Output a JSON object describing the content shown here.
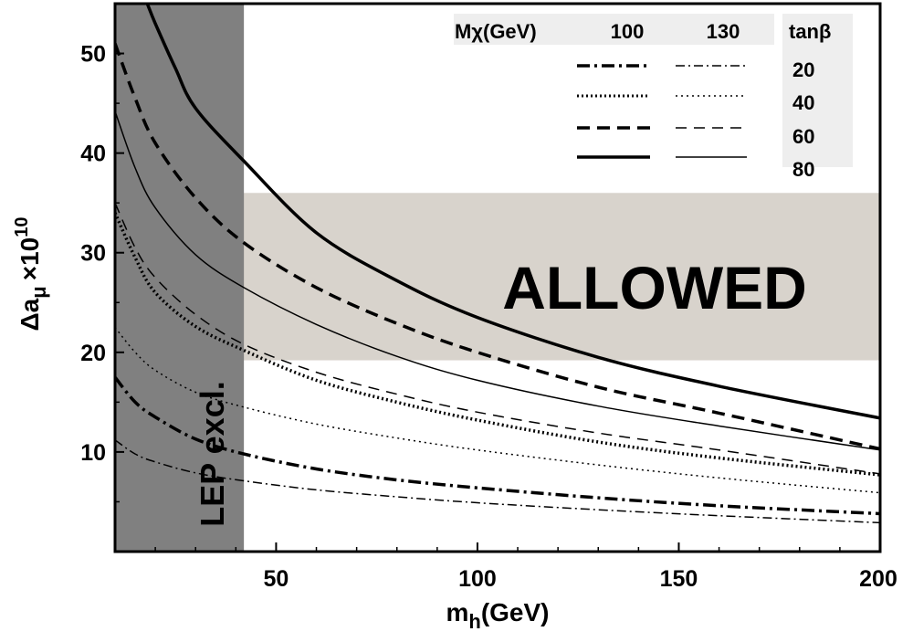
{
  "chart_data": {
    "type": "line",
    "xlabel": "m",
    "xlabel_sub": "h",
    "xlabel_unit": "(GeV)",
    "ylabel": "Δa",
    "ylabel_sub": "μ",
    "ylabel_times": "×10",
    "ylabel_exp": "10",
    "xlim": [
      10,
      200
    ],
    "ylim": [
      0,
      55
    ],
    "xticks": [
      50,
      100,
      150,
      200
    ],
    "yticks": [
      10,
      20,
      30,
      40,
      50
    ],
    "allowed_band": {
      "y_low": 19.2,
      "y_high": 36.0,
      "label": "ALLOWED",
      "color": "#d8d3cc"
    },
    "lep_exclusion": {
      "x_max": 42,
      "label": "LEP excl.",
      "color": "#808080"
    },
    "legend": {
      "mass_header": "Mχ(GeV)",
      "mass_values": [
        "100",
        "130"
      ],
      "tanb_header": "tanβ",
      "tanb_values": [
        "20",
        "40",
        "60",
        "80"
      ]
    },
    "series": [
      {
        "mass": 100,
        "tanb": 20,
        "style": "dashdot",
        "x": [
          10,
          15,
          20,
          30,
          42,
          60,
          80,
          100,
          130,
          160,
          200
        ],
        "y": [
          17.5,
          15.0,
          13.5,
          11.3,
          9.8,
          8.3,
          7.2,
          6.4,
          5.4,
          4.6,
          3.8
        ]
      },
      {
        "mass": 130,
        "tanb": 20,
        "style": "dashdot",
        "x": [
          10,
          15,
          20,
          30,
          42,
          60,
          80,
          100,
          130,
          160,
          200
        ],
        "y": [
          11.2,
          9.8,
          9.0,
          7.9,
          7.1,
          6.2,
          5.5,
          4.9,
          4.2,
          3.6,
          2.9
        ]
      },
      {
        "mass": 100,
        "tanb": 40,
        "style": "dotted",
        "x": [
          10,
          15,
          20,
          30,
          42,
          60,
          80,
          100,
          130,
          160,
          200
        ],
        "y": [
          34.0,
          29.5,
          26.0,
          22.6,
          20.2,
          17.2,
          15.0,
          13.2,
          11.0,
          9.4,
          7.7
        ]
      },
      {
        "mass": 130,
        "tanb": 40,
        "style": "dotted",
        "x": [
          10,
          15,
          20,
          30,
          42,
          60,
          80,
          100,
          130,
          160,
          200
        ],
        "y": [
          22.5,
          20.0,
          18.2,
          16.0,
          14.5,
          12.8,
          11.4,
          10.2,
          8.7,
          7.4,
          5.9
        ]
      },
      {
        "mass": 100,
        "tanb": 60,
        "style": "dashed",
        "x": [
          10,
          15,
          20,
          30,
          42,
          60,
          80,
          100,
          130,
          160,
          200
        ],
        "y": [
          51.0,
          45.5,
          41.0,
          35.5,
          31.0,
          26.5,
          22.9,
          20.0,
          16.5,
          13.9,
          10.3
        ]
      },
      {
        "mass": 130,
        "tanb": 60,
        "style": "dashed",
        "x": [
          10,
          15,
          20,
          30,
          42,
          60,
          80,
          100,
          130,
          160,
          200
        ],
        "y": [
          35.0,
          30.5,
          27.5,
          23.8,
          20.8,
          18.0,
          15.8,
          14.0,
          11.9,
          10.2,
          7.8
        ]
      },
      {
        "mass": 100,
        "tanb": 80,
        "style": "solid",
        "x": [
          18,
          20,
          25,
          30,
          42,
          60,
          80,
          100,
          130,
          160,
          200
        ],
        "y": [
          55.0,
          53.0,
          48.5,
          44.5,
          39.2,
          32.0,
          27.2,
          23.5,
          19.5,
          16.6,
          13.4
        ]
      },
      {
        "mass": 130,
        "tanb": 80,
        "style": "solid",
        "x": [
          10,
          15,
          20,
          30,
          42,
          60,
          80,
          100,
          130,
          160,
          200
        ],
        "y": [
          44.2,
          38.5,
          34.5,
          29.8,
          26.5,
          22.8,
          19.6,
          17.2,
          14.6,
          12.6,
          10.2
        ]
      }
    ]
  }
}
